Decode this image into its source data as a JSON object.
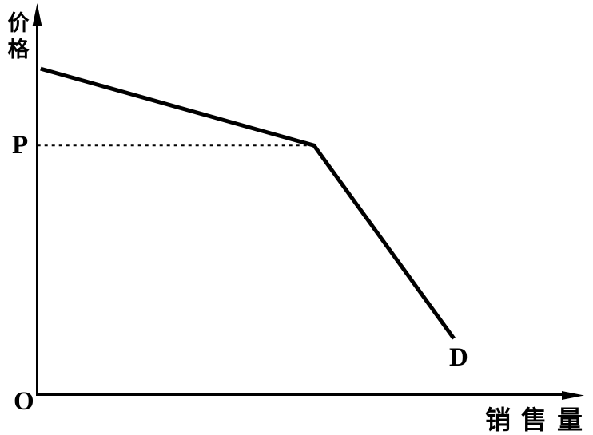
{
  "chart_data": {
    "type": "line",
    "title": "",
    "ylabel": "价格",
    "xlabel": "销售量",
    "origin_label": "O",
    "price_point_label": "P",
    "curve_label": "D",
    "line_color": "#000000",
    "background_color": "#ffffff",
    "x_range": [
      0,
      100
    ],
    "y_range": [
      0,
      100
    ],
    "grid": false,
    "numeric_axis_ticks": false,
    "legend": "none",
    "series": [
      {
        "name": "D",
        "style": "solid",
        "stroke_width": 5,
        "points": [
          [
            0.7,
            84.3
          ],
          [
            50.7,
            64.5
          ],
          [
            76.3,
            14.6
          ]
        ]
      },
      {
        "name": "P-reference",
        "style": "dotted",
        "stroke_width": 2,
        "points": [
          [
            0.1,
            64.5
          ],
          [
            50.4,
            64.5
          ]
        ]
      }
    ]
  }
}
